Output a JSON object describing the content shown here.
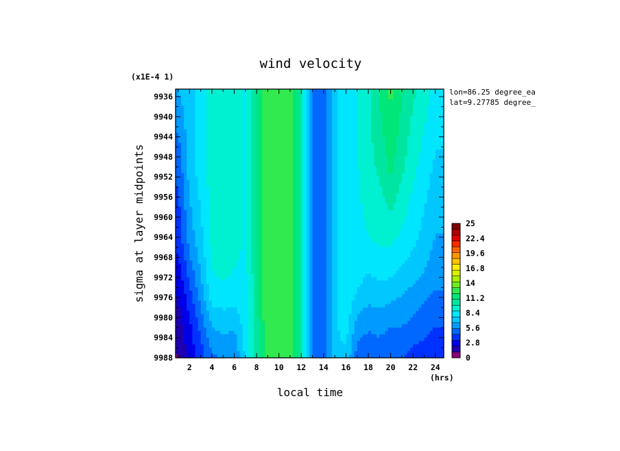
{
  "chart_data": {
    "type": "heatmap",
    "title": "wind velocity",
    "scale_note": "(x1E-4 1)",
    "xlabel": "local time",
    "ylabel": "sigma at layer midpoints",
    "x_unit": "(hrs)",
    "annotations": [
      "lon=86.25 degree_ea",
      "lat=9.27785 degree_"
    ],
    "x_range": [
      0.75,
      24.75
    ],
    "y_range": [
      9934.5,
      9988
    ],
    "y_inverted": true,
    "x_ticks": [
      "2",
      "4",
      "6",
      "8",
      "10",
      "12",
      "14",
      "16",
      "18",
      "20",
      "22",
      "24"
    ],
    "y_ticks": [
      "9936",
      "9940",
      "9944",
      "9948",
      "9952",
      "9956",
      "9960",
      "9964",
      "9968",
      "9972",
      "9976",
      "9980",
      "9984",
      "9988"
    ],
    "colorbar": {
      "min": 0,
      "max": 25,
      "tick_labels": [
        "25",
        "22.4",
        "19.6",
        "16.8",
        "14",
        "11.2",
        "8.4",
        "5.6",
        "2.8",
        "0"
      ],
      "colors": [
        "#8a007a",
        "#1e00b0",
        "#0000e8",
        "#0032ff",
        "#0068ff",
        "#009bff",
        "#00c8ff",
        "#00e6ff",
        "#00f0d2",
        "#00e6a0",
        "#00e678",
        "#30ea50",
        "#70ee20",
        "#a8f000",
        "#d8f000",
        "#ffee00",
        "#ffc400",
        "#ff9600",
        "#ff6400",
        "#ff2a00",
        "#e00000",
        "#b00000",
        "#800000"
      ]
    },
    "x": [
      1,
      2,
      3,
      4,
      5,
      6,
      7,
      8,
      9,
      10,
      11,
      12,
      13,
      14,
      15,
      16,
      17,
      18,
      19,
      20,
      21,
      22,
      23,
      24
    ],
    "y_levels": [
      9935,
      9950,
      9965,
      9972,
      9976,
      9980,
      9984,
      9988
    ],
    "z": [
      [
        6.5,
        7.2,
        8.2,
        9.2,
        9.4,
        9.2,
        8.6,
        10.6,
        12.8,
        12.8,
        12.6,
        10.4,
        5.4,
        4.8,
        7.4,
        8.4,
        8.6,
        9.6,
        11.0,
        12.2,
        11.0,
        10.0,
        9.2,
        8.4
      ],
      [
        4.6,
        7.0,
        8.2,
        9.2,
        9.4,
        9.2,
        8.6,
        10.6,
        12.8,
        12.8,
        12.6,
        10.4,
        5.4,
        4.8,
        7.4,
        8.4,
        8.6,
        9.4,
        10.0,
        11.2,
        10.0,
        9.0,
        8.2,
        7.4
      ],
      [
        3.6,
        5.8,
        7.2,
        9.0,
        9.2,
        9.0,
        8.6,
        10.6,
        12.8,
        12.8,
        12.6,
        10.4,
        5.4,
        4.8,
        7.4,
        8.4,
        8.4,
        8.6,
        8.8,
        8.8,
        8.4,
        7.8,
        7.2,
        6.4
      ],
      [
        2.6,
        4.6,
        6.4,
        8.6,
        8.8,
        8.6,
        8.4,
        10.6,
        12.8,
        12.8,
        12.6,
        10.4,
        5.4,
        4.8,
        7.4,
        8.4,
        8.0,
        7.4,
        7.8,
        7.6,
        7.2,
        6.8,
        6.4,
        5.8
      ],
      [
        2.2,
        3.8,
        5.8,
        8.0,
        8.2,
        8.2,
        8.4,
        10.6,
        12.8,
        12.8,
        12.6,
        10.4,
        5.4,
        4.8,
        7.4,
        8.4,
        7.4,
        6.8,
        7.0,
        6.8,
        6.4,
        6.0,
        5.6,
        5.2
      ],
      [
        1.8,
        3.2,
        5.0,
        7.0,
        7.2,
        7.0,
        8.2,
        10.6,
        12.8,
        12.8,
        12.6,
        10.4,
        5.4,
        4.8,
        7.4,
        8.2,
        6.4,
        6.0,
        6.2,
        5.8,
        5.8,
        5.4,
        5.0,
        4.6
      ],
      [
        1.4,
        2.8,
        4.4,
        6.0,
        6.4,
        6.2,
        8.0,
        10.4,
        12.6,
        12.8,
        12.6,
        10.4,
        5.4,
        4.8,
        7.4,
        7.8,
        5.6,
        5.2,
        5.4,
        5.0,
        5.0,
        4.6,
        4.4,
        4.0
      ],
      [
        1.0,
        2.4,
        3.8,
        5.2,
        5.6,
        5.4,
        7.8,
        10.2,
        12.4,
        12.6,
        12.4,
        10.2,
        5.4,
        4.8,
        7.4,
        7.4,
        4.8,
        4.6,
        4.8,
        4.4,
        4.4,
        4.0,
        3.8,
        3.6
      ]
    ]
  }
}
